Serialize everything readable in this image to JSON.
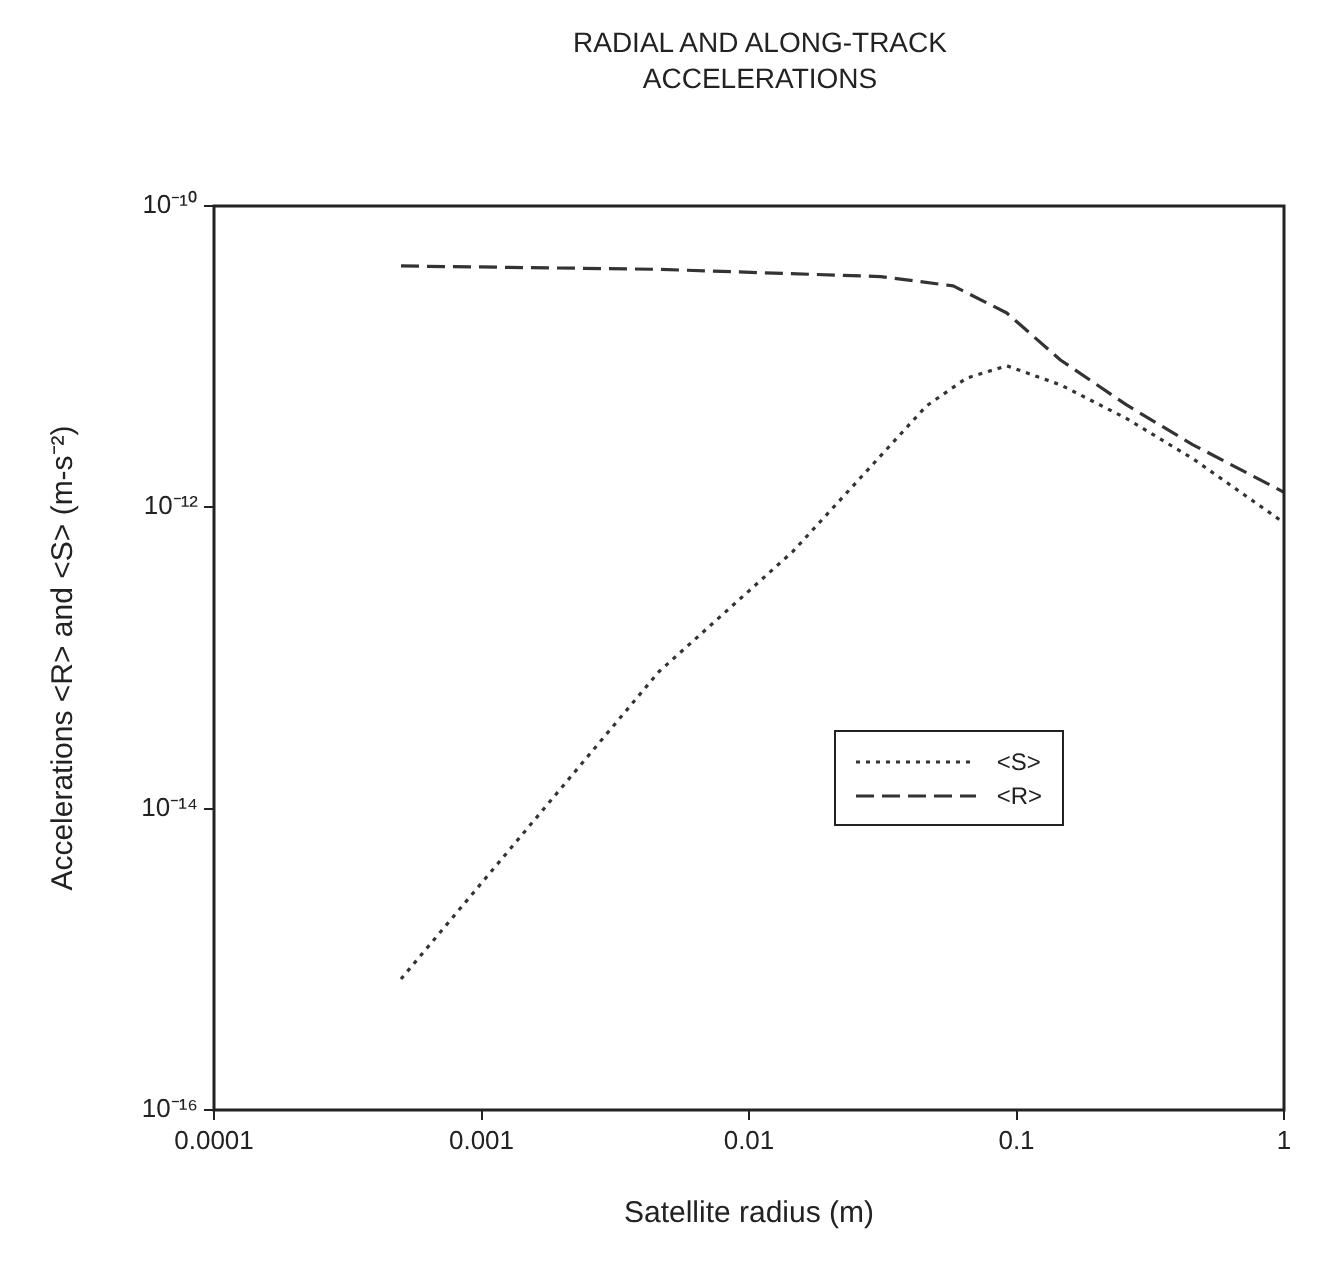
{
  "chart_data": {
    "type": "line",
    "title": "RADIAL AND ALONG-TRACK ACCELERATIONS",
    "xlabel": "Satellite radius  (m)",
    "ylabel": "Accelerations <R> and <S> (m-s⁻²)",
    "log": "xy",
    "grid": false,
    "legend": "right",
    "marker": "none",
    "xlim": [
      0.0001,
      1
    ],
    "xticks": [
      0.0001,
      0.001,
      0.01,
      0.1,
      1
    ],
    "ylim": [
      1e-16,
      1e-10
    ],
    "yticks": [
      {
        "value": 1e-16,
        "label": "10⁻¹⁶"
      },
      {
        "value": 1e-14,
        "label": "10⁻¹⁴"
      },
      {
        "value": 1e-12,
        "label": "10⁻¹²"
      },
      {
        "value": 1e-10,
        "label": "10⁻¹⁰"
      }
    ],
    "series": [
      {
        "name": "<S>",
        "color": "#333333",
        "line_style": "dotted",
        "x": [
          0.0005,
          0.0046,
          0.0146,
          0.046,
          0.065,
          0.092,
          0.146,
          0.257,
          0.457,
          1
        ],
        "values": [
          7.4e-16,
          8.1e-14,
          5.1e-13,
          4.7e-12,
          7.2e-12,
          8.7e-12,
          6.5e-12,
          3.9e-12,
          2.1e-12,
          7.9e-13
        ]
      },
      {
        "name": "<R>",
        "color": "#333333",
        "line_style": "dashed",
        "x": [
          0.0005,
          0.0046,
          0.031,
          0.058,
          0.092,
          0.146,
          0.257,
          0.457,
          1
        ],
        "values": [
          4e-11,
          3.8e-11,
          3.4e-11,
          2.95e-11,
          1.95e-11,
          9.5e-12,
          4.8e-12,
          2.6e-12,
          1.26e-12
        ]
      }
    ]
  }
}
